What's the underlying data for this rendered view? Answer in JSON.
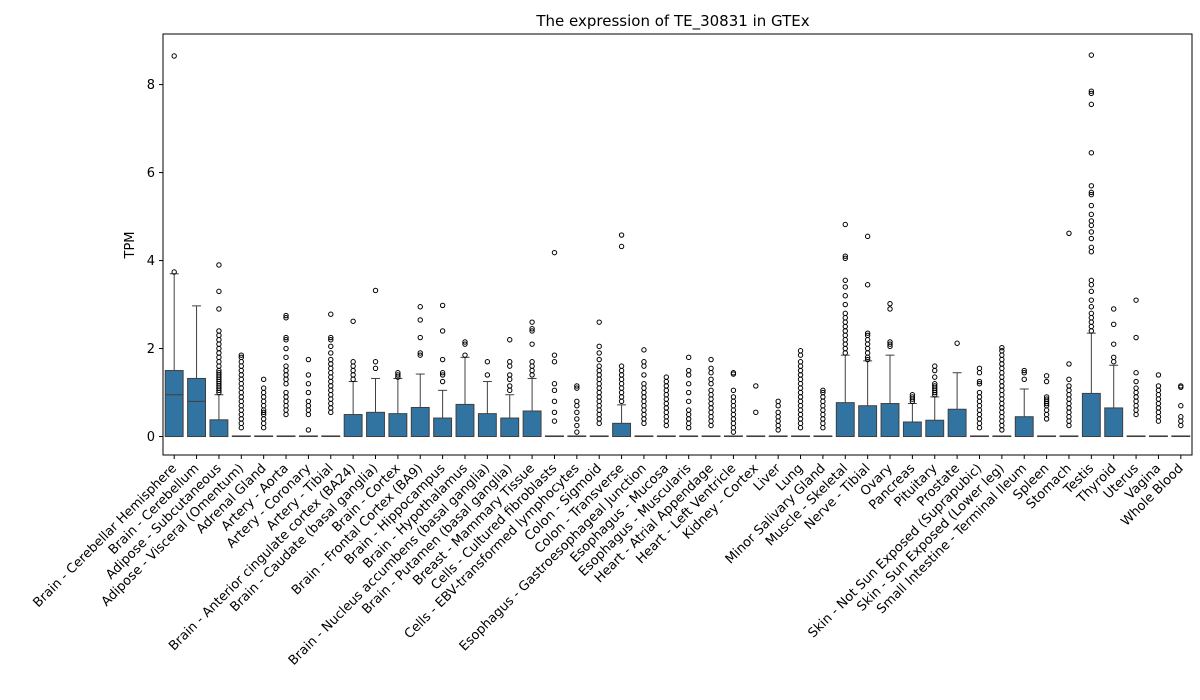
{
  "chart_data": {
    "type": "boxplot",
    "title": "The expression of TE_30831 in GTEx",
    "xlabel": "",
    "ylabel": "TPM",
    "ylim": [
      -0.42,
      9.15
    ],
    "yticks": [
      0,
      2,
      4,
      6,
      8
    ],
    "grid": false,
    "legend": "none",
    "box_color": "#3274a1",
    "line_color": "#3f3f3f",
    "series": [
      {
        "name": "Brain - Cerebellar Hemisphere",
        "q1": 0,
        "median": 0.95,
        "q3": 1.5,
        "whislo": 0,
        "whishi": 3.7,
        "fliers": [
          3.74,
          8.65
        ]
      },
      {
        "name": "Brain - Cerebellum",
        "q1": 0,
        "median": 0.8,
        "q3": 1.32,
        "whislo": 0,
        "whishi": 2.97,
        "fliers": []
      },
      {
        "name": "Adipose - Subcutaneous",
        "q1": 0,
        "median": 0,
        "q3": 0.38,
        "whislo": 0,
        "whishi": 0.95,
        "fliers": [
          1.0,
          1.05,
          1.1,
          1.15,
          1.2,
          1.25,
          1.3,
          1.35,
          1.4,
          1.45,
          1.5,
          1.6,
          1.7,
          1.8,
          1.9,
          2.0,
          2.1,
          2.2,
          2.3,
          2.4,
          2.9,
          3.3,
          3.9
        ]
      },
      {
        "name": "Adipose - Visceral (Omentum)",
        "q1": 0,
        "median": 0,
        "q3": 0,
        "whislo": 0,
        "whishi": 0,
        "fliers": [
          0.2,
          0.3,
          0.4,
          0.5,
          0.6,
          0.7,
          0.8,
          0.9,
          1.0,
          1.1,
          1.2,
          1.3,
          1.4,
          1.5,
          1.6,
          1.7,
          1.8,
          1.85
        ]
      },
      {
        "name": "Adrenal Gland",
        "q1": 0,
        "median": 0,
        "q3": 0,
        "whislo": 0,
        "whishi": 0,
        "fliers": [
          0.2,
          0.3,
          0.4,
          0.5,
          0.55,
          0.6,
          0.7,
          0.8,
          0.9,
          1.0,
          1.1,
          1.3
        ]
      },
      {
        "name": "Artery - Aorta",
        "q1": 0,
        "median": 0,
        "q3": 0,
        "whislo": 0,
        "whishi": 0,
        "fliers": [
          0.5,
          0.6,
          0.7,
          0.8,
          0.9,
          1.0,
          1.2,
          1.3,
          1.4,
          1.5,
          1.6,
          1.8,
          2.0,
          2.2,
          2.25,
          2.7,
          2.75
        ]
      },
      {
        "name": "Artery - Coronary",
        "q1": 0,
        "median": 0,
        "q3": 0,
        "whislo": 0,
        "whishi": 0,
        "fliers": [
          0.15,
          0.5,
          0.6,
          0.7,
          0.8,
          1.0,
          1.2,
          1.4,
          1.75
        ]
      },
      {
        "name": "Artery - Tibial",
        "q1": 0,
        "median": 0,
        "q3": 0,
        "whislo": 0,
        "whishi": 0,
        "fliers": [
          0.55,
          0.65,
          0.75,
          0.85,
          0.95,
          1.05,
          1.15,
          1.25,
          1.35,
          1.45,
          1.55,
          1.65,
          1.75,
          1.9,
          2.05,
          2.2,
          2.25,
          2.78
        ]
      },
      {
        "name": "Brain - Anterior cingulate cortex (BA24)",
        "q1": 0,
        "median": 0,
        "q3": 0.5,
        "whislo": 0,
        "whishi": 1.25,
        "fliers": [
          1.3,
          1.4,
          1.5,
          1.6,
          1.7,
          2.62
        ]
      },
      {
        "name": "Brain - Caudate (basal ganglia)",
        "q1": 0,
        "median": 0,
        "q3": 0.55,
        "whislo": 0,
        "whishi": 1.32,
        "fliers": [
          1.55,
          1.7,
          3.32
        ]
      },
      {
        "name": "Brain - Cortex",
        "q1": 0,
        "median": 0,
        "q3": 0.52,
        "whislo": 0,
        "whishi": 1.32,
        "fliers": [
          1.35,
          1.4,
          1.45
        ]
      },
      {
        "name": "Brain - Frontal Cortex (BA9)",
        "q1": 0,
        "median": 0,
        "q3": 0.66,
        "whislo": 0,
        "whishi": 1.42,
        "fliers": [
          1.85,
          1.9,
          2.25,
          2.65,
          2.95
        ]
      },
      {
        "name": "Brain - Hippocampus",
        "q1": 0,
        "median": 0,
        "q3": 0.42,
        "whislo": 0,
        "whishi": 1.05,
        "fliers": [
          1.25,
          1.4,
          1.45,
          1.75,
          2.4,
          2.98
        ]
      },
      {
        "name": "Brain - Hypothalamus",
        "q1": 0,
        "median": 0,
        "q3": 0.73,
        "whislo": 0,
        "whishi": 1.8,
        "fliers": [
          1.85,
          2.1,
          2.15
        ]
      },
      {
        "name": "Brain - Nucleus accumbens (basal ganglia)",
        "q1": 0,
        "median": 0,
        "q3": 0.52,
        "whislo": 0,
        "whishi": 1.25,
        "fliers": [
          1.4,
          1.7
        ]
      },
      {
        "name": "Brain - Putamen (basal ganglia)",
        "q1": 0,
        "median": 0,
        "q3": 0.42,
        "whislo": 0,
        "whishi": 0.95,
        "fliers": [
          1.05,
          1.15,
          1.3,
          1.4,
          1.6,
          1.7,
          2.2
        ]
      },
      {
        "name": "Breast - Mammary Tissue",
        "q1": 0,
        "median": 0,
        "q3": 0.58,
        "whislo": 0,
        "whishi": 1.32,
        "fliers": [
          1.4,
          1.5,
          1.6,
          1.7,
          2.1,
          2.4,
          2.45,
          2.6
        ]
      },
      {
        "name": "Cells - Cultured fibroblasts",
        "q1": 0,
        "median": 0,
        "q3": 0,
        "whislo": 0,
        "whishi": 0,
        "fliers": [
          0.35,
          0.55,
          0.8,
          1.05,
          1.2,
          1.7,
          1.85,
          4.18
        ]
      },
      {
        "name": "Cells - EBV-transformed lymphocytes",
        "q1": 0,
        "median": 0,
        "q3": 0,
        "whislo": 0,
        "whishi": 0,
        "fliers": [
          0.1,
          0.25,
          0.4,
          0.55,
          0.7,
          0.8,
          1.1,
          1.15
        ]
      },
      {
        "name": "Colon - Sigmoid",
        "q1": 0,
        "median": 0,
        "q3": 0,
        "whislo": 0,
        "whishi": 0,
        "fliers": [
          0.3,
          0.4,
          0.5,
          0.6,
          0.7,
          0.8,
          0.9,
          1.0,
          1.1,
          1.2,
          1.3,
          1.4,
          1.5,
          1.6,
          1.75,
          1.9,
          2.05,
          2.6
        ]
      },
      {
        "name": "Colon - Transverse",
        "q1": 0,
        "median": 0,
        "q3": 0.3,
        "whislo": 0,
        "whishi": 0.72,
        "fliers": [
          0.8,
          0.9,
          1.0,
          1.1,
          1.2,
          1.3,
          1.4,
          1.5,
          1.6,
          4.32,
          4.58
        ]
      },
      {
        "name": "Esophagus - Gastroesophageal Junction",
        "q1": 0,
        "median": 0,
        "q3": 0,
        "whislo": 0,
        "whishi": 0,
        "fliers": [
          0.3,
          0.4,
          0.5,
          0.6,
          0.7,
          0.8,
          0.9,
          1.0,
          1.1,
          1.2,
          1.4,
          1.6,
          1.7,
          1.97
        ]
      },
      {
        "name": "Esophagus - Mucosa",
        "q1": 0,
        "median": 0,
        "q3": 0,
        "whislo": 0,
        "whishi": 0,
        "fliers": [
          0.25,
          0.35,
          0.45,
          0.55,
          0.65,
          0.75,
          0.85,
          0.95,
          1.05,
          1.15,
          1.25,
          1.35
        ]
      },
      {
        "name": "Esophagus - Muscularis",
        "q1": 0,
        "median": 0,
        "q3": 0,
        "whislo": 0,
        "whishi": 0,
        "fliers": [
          0.2,
          0.3,
          0.4,
          0.5,
          0.6,
          0.8,
          1.0,
          1.2,
          1.4,
          1.5,
          1.8
        ]
      },
      {
        "name": "Heart - Atrial Appendage",
        "q1": 0,
        "median": 0,
        "q3": 0,
        "whislo": 0,
        "whishi": 0,
        "fliers": [
          0.25,
          0.35,
          0.45,
          0.55,
          0.65,
          0.75,
          0.85,
          0.95,
          1.05,
          1.2,
          1.3,
          1.45,
          1.55,
          1.75
        ]
      },
      {
        "name": "Heart - Left Ventricle",
        "q1": 0,
        "median": 0,
        "q3": 0,
        "whislo": 0,
        "whishi": 0,
        "fliers": [
          0.1,
          0.2,
          0.3,
          0.4,
          0.5,
          0.6,
          0.7,
          0.8,
          0.9,
          1.05,
          1.42,
          1.45
        ]
      },
      {
        "name": "Kidney - Cortex",
        "q1": 0,
        "median": 0,
        "q3": 0,
        "whislo": 0,
        "whishi": 0,
        "fliers": [
          0.55,
          1.15
        ]
      },
      {
        "name": "Liver",
        "q1": 0,
        "median": 0,
        "q3": 0,
        "whislo": 0,
        "whishi": 0,
        "fliers": [
          0.15,
          0.25,
          0.35,
          0.45,
          0.55,
          0.7,
          0.8
        ]
      },
      {
        "name": "Lung",
        "q1": 0,
        "median": 0,
        "q3": 0,
        "whislo": 0,
        "whishi": 0,
        "fliers": [
          0.2,
          0.3,
          0.4,
          0.5,
          0.6,
          0.7,
          0.8,
          0.9,
          1.0,
          1.1,
          1.2,
          1.3,
          1.4,
          1.5,
          1.6,
          1.7,
          1.85,
          1.95
        ]
      },
      {
        "name": "Minor Salivary Gland",
        "q1": 0,
        "median": 0,
        "q3": 0,
        "whislo": 0,
        "whishi": 0,
        "fliers": [
          0.2,
          0.3,
          0.4,
          0.5,
          0.6,
          0.7,
          0.8,
          0.9,
          1.0,
          1.05
        ]
      },
      {
        "name": "Muscle - Skeletal",
        "q1": 0,
        "median": 0,
        "q3": 0.77,
        "whislo": 0,
        "whishi": 1.85,
        "fliers": [
          1.9,
          2.0,
          2.1,
          2.2,
          2.3,
          2.4,
          2.5,
          2.6,
          2.7,
          2.8,
          3.0,
          3.2,
          3.4,
          3.55,
          4.05,
          4.1,
          4.82
        ]
      },
      {
        "name": "Nerve - Tibial",
        "q1": 0,
        "median": 0,
        "q3": 0.7,
        "whislo": 0,
        "whishi": 1.72,
        "fliers": [
          1.75,
          1.8,
          1.9,
          2.0,
          2.1,
          2.2,
          2.3,
          2.35,
          3.45,
          4.55
        ]
      },
      {
        "name": "Ovary",
        "q1": 0,
        "median": 0,
        "q3": 0.75,
        "whislo": 0,
        "whishi": 1.85,
        "fliers": [
          2.05,
          2.1,
          2.15,
          2.9,
          3.02
        ]
      },
      {
        "name": "Pancreas",
        "q1": 0,
        "median": 0,
        "q3": 0.33,
        "whislo": 0,
        "whishi": 0.75,
        "fliers": [
          0.8,
          0.85,
          0.9,
          0.95
        ]
      },
      {
        "name": "Pituitary",
        "q1": 0,
        "median": 0,
        "q3": 0.37,
        "whislo": 0,
        "whishi": 0.9,
        "fliers": [
          0.95,
          1.0,
          1.05,
          1.1,
          1.15,
          1.2,
          1.35,
          1.5,
          1.6
        ]
      },
      {
        "name": "Prostate",
        "q1": 0,
        "median": 0,
        "q3": 0.62,
        "whislo": 0,
        "whishi": 1.45,
        "fliers": [
          2.12
        ]
      },
      {
        "name": "Skin - Not Sun Exposed (Suprapubic)",
        "q1": 0,
        "median": 0,
        "q3": 0,
        "whislo": 0,
        "whishi": 0,
        "fliers": [
          0.2,
          0.3,
          0.4,
          0.5,
          0.6,
          0.7,
          0.8,
          0.9,
          1.0,
          1.2,
          1.25,
          1.45,
          1.55
        ]
      },
      {
        "name": "Skin - Sun Exposed (Lower leg)",
        "q1": 0,
        "median": 0,
        "q3": 0,
        "whislo": 0,
        "whishi": 0,
        "fliers": [
          0.15,
          0.25,
          0.35,
          0.45,
          0.55,
          0.65,
          0.75,
          0.85,
          0.95,
          1.05,
          1.15,
          1.25,
          1.35,
          1.45,
          1.55,
          1.65,
          1.75,
          1.85,
          1.95,
          2.02
        ]
      },
      {
        "name": "Small Intestine - Terminal Ileum",
        "q1": 0,
        "median": 0,
        "q3": 0.45,
        "whislo": 0,
        "whishi": 1.08,
        "fliers": [
          1.3,
          1.45,
          1.5
        ]
      },
      {
        "name": "Spleen",
        "q1": 0,
        "median": 0,
        "q3": 0,
        "whislo": 0,
        "whishi": 0,
        "fliers": [
          0.4,
          0.5,
          0.6,
          0.7,
          0.75,
          0.8,
          0.85,
          0.9,
          1.25,
          1.38
        ]
      },
      {
        "name": "Stomach",
        "q1": 0,
        "median": 0,
        "q3": 0,
        "whislo": 0,
        "whishi": 0,
        "fliers": [
          0.25,
          0.35,
          0.45,
          0.55,
          0.65,
          0.75,
          0.85,
          0.95,
          1.05,
          1.15,
          1.3,
          1.65,
          4.62
        ]
      },
      {
        "name": "Testis",
        "q1": 0,
        "median": 0,
        "q3": 0.98,
        "whislo": 0,
        "whishi": 2.35,
        "fliers": [
          2.4,
          2.5,
          2.6,
          2.7,
          2.8,
          2.95,
          3.1,
          3.3,
          3.45,
          3.55,
          4.2,
          4.3,
          4.5,
          4.65,
          4.8,
          4.9,
          5.05,
          5.25,
          5.5,
          5.55,
          5.7,
          6.45,
          7.55,
          7.8,
          7.85,
          8.67
        ]
      },
      {
        "name": "Thyroid",
        "q1": 0,
        "median": 0,
        "q3": 0.65,
        "whislo": 0,
        "whishi": 1.62,
        "fliers": [
          1.7,
          1.8,
          2.1,
          2.55,
          2.9
        ]
      },
      {
        "name": "Uterus",
        "q1": 0,
        "median": 0,
        "q3": 0,
        "whislo": 0,
        "whishi": 0,
        "fliers": [
          0.5,
          0.6,
          0.7,
          0.8,
          0.9,
          1.0,
          1.1,
          1.25,
          1.45,
          2.25,
          3.1
        ]
      },
      {
        "name": "Vagina",
        "q1": 0,
        "median": 0,
        "q3": 0,
        "whislo": 0,
        "whishi": 0,
        "fliers": [
          0.35,
          0.45,
          0.55,
          0.65,
          0.75,
          0.85,
          0.95,
          1.05,
          1.15,
          1.4
        ]
      },
      {
        "name": "Whole Blood",
        "q1": 0,
        "median": 0,
        "q3": 0,
        "whislo": 0,
        "whishi": 0,
        "fliers": [
          0.25,
          0.35,
          0.45,
          0.7,
          1.12,
          1.15
        ]
      }
    ]
  }
}
